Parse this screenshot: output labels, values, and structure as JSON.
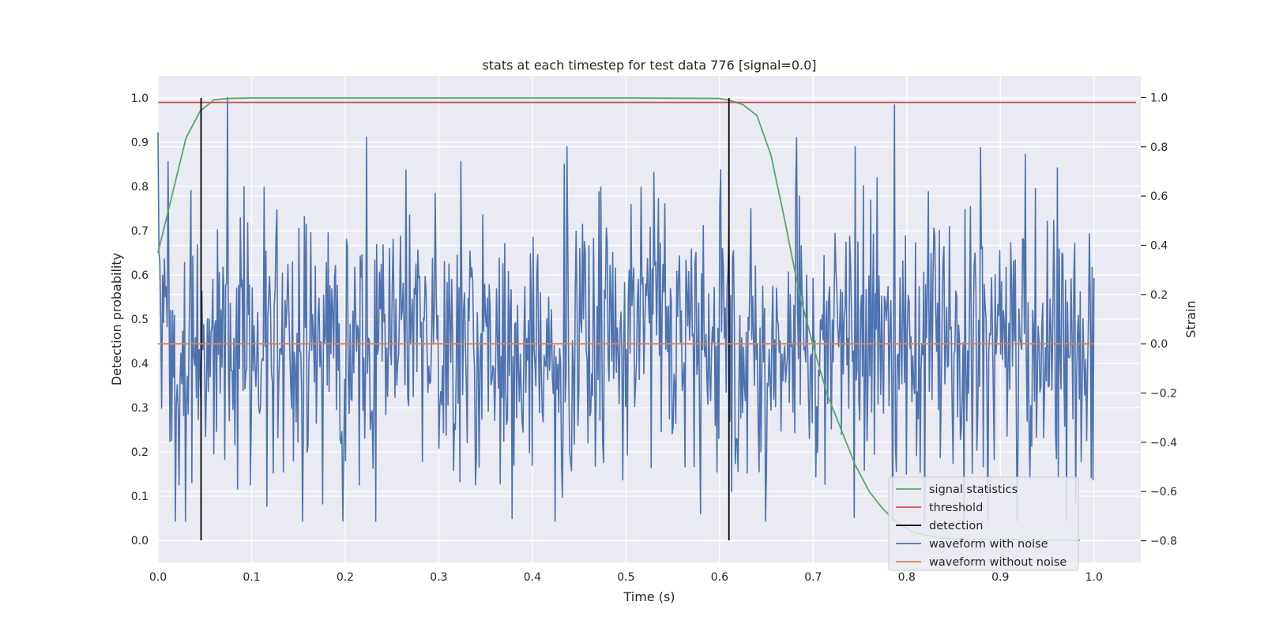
{
  "chart_data": {
    "type": "line",
    "title": "stats at each timestep for test data 776 [signal=0.0]",
    "xlabel": "Time (s)",
    "ylabel_left": "Detection probability",
    "ylabel_right": "Strain",
    "xlim": [
      0.0,
      1.05
    ],
    "ylim_left": [
      -0.05,
      1.05
    ],
    "ylim_right": [
      -0.888,
      1.088
    ],
    "x_ticks": [
      0.0,
      0.1,
      0.2,
      0.3,
      0.4,
      0.5,
      0.6,
      0.7,
      0.8,
      0.9,
      1.0
    ],
    "x_tick_labels": [
      "0.0",
      "0.1",
      "0.2",
      "0.3",
      "0.4",
      "0.5",
      "0.6",
      "0.7",
      "0.8",
      "0.9",
      "1.0"
    ],
    "y_left_ticks": [
      0.0,
      0.1,
      0.2,
      0.3,
      0.4,
      0.5,
      0.6,
      0.7,
      0.8,
      0.9,
      1.0
    ],
    "y_left_tick_labels": [
      "0.0",
      "0.1",
      "0.2",
      "0.3",
      "0.4",
      "0.5",
      "0.6",
      "0.7",
      "0.8",
      "0.9",
      "1.0"
    ],
    "y_right_ticks": [
      -0.8,
      -0.6,
      -0.4,
      -0.2,
      0.0,
      0.2,
      0.4,
      0.6,
      0.8,
      1.0
    ],
    "y_right_tick_labels": [
      "−0.8",
      "−0.6",
      "−0.4",
      "−0.2",
      "0.0",
      "0.2",
      "0.4",
      "0.6",
      "0.8",
      "1.0"
    ],
    "grid": true,
    "legend_position": "lower-right",
    "colors": {
      "signal_statistics": "#55a868",
      "threshold": "#c44e52",
      "detection": "#000000",
      "waveform_with_noise": "#4c72b0",
      "waveform_without_noise": "#dd8452",
      "plot_background": "#eaeaf2",
      "grid": "#ffffff"
    },
    "series": [
      {
        "name": "signal statistics",
        "axis": "left",
        "color": "#55a868",
        "x": [
          0.0,
          0.015,
          0.03,
          0.045,
          0.06,
          0.075,
          0.1,
          0.2,
          0.3,
          0.4,
          0.5,
          0.6,
          0.61,
          0.625,
          0.64,
          0.655,
          0.67,
          0.685,
          0.7,
          0.715,
          0.73,
          0.745,
          0.76,
          0.775,
          0.79,
          0.805,
          0.82,
          0.835,
          0.85,
          0.9,
          0.95,
          0.985
        ],
        "y": [
          0.65,
          0.78,
          0.91,
          0.97,
          0.996,
          0.999,
          1.0,
          1.0,
          1.0,
          1.0,
          1.0,
          0.999,
          0.995,
          0.985,
          0.96,
          0.87,
          0.72,
          0.56,
          0.44,
          0.33,
          0.25,
          0.17,
          0.11,
          0.07,
          0.04,
          0.02,
          0.012,
          0.006,
          0.003,
          0.001,
          0.0,
          0.0
        ]
      },
      {
        "name": "threshold",
        "axis": "left",
        "color": "#c44e52",
        "x": [
          0.0,
          1.045
        ],
        "y": [
          0.99,
          0.99
        ]
      },
      {
        "name": "detection",
        "axis": "left",
        "color": "#000000",
        "x_positions": [
          0.046,
          0.61
        ],
        "y_range": [
          0.0,
          1.0
        ]
      },
      {
        "name": "waveform with noise",
        "axis": "right",
        "color": "#4c72b0",
        "x_range": [
          0.0,
          1.0
        ],
        "n_points": 1024,
        "std": 0.3,
        "range": [
          -0.72,
          1.0
        ],
        "peaks": [
          [
            0.074,
            1.0
          ],
          [
            0.437,
            0.8
          ],
          [
            0.745,
            0.8
          ],
          [
            0.927,
            0.77
          ],
          [
            0.378,
            -0.71
          ],
          [
            0.58,
            -0.69
          ],
          [
            0.176,
            -0.65
          ]
        ]
      },
      {
        "name": "waveform without noise",
        "axis": "right",
        "color": "#dd8452",
        "x": [
          0.0,
          1.0
        ],
        "y": [
          0.0,
          0.0
        ]
      }
    ]
  }
}
